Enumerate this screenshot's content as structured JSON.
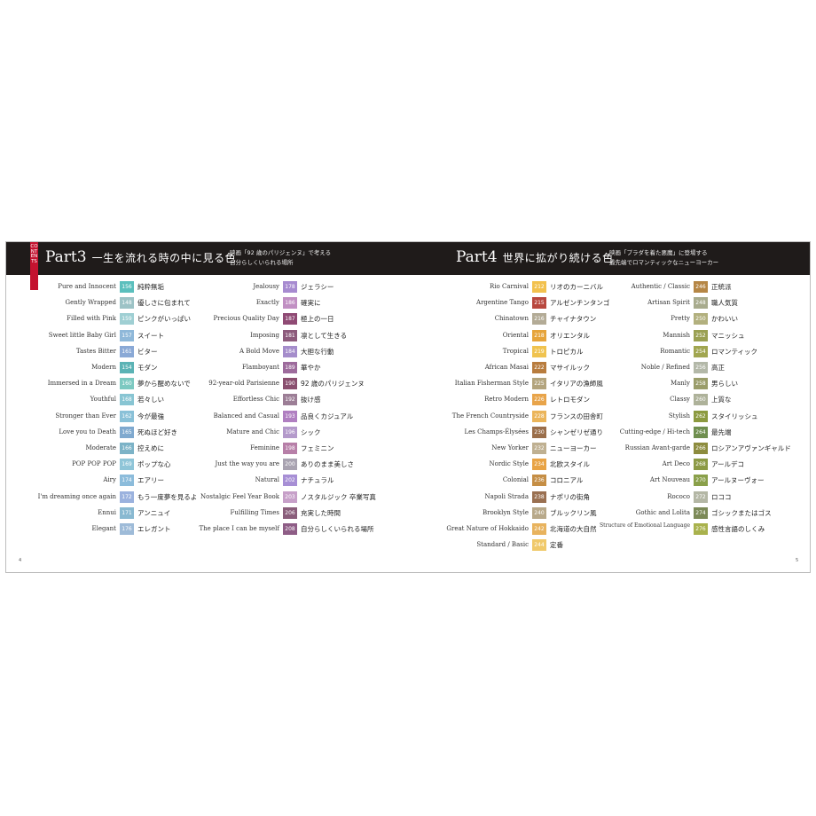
{
  "contents_label": "CONTENTS",
  "part3": {
    "title": "Part3",
    "subtitle": "一生を流れる時の中に見る色",
    "note_line1": "映画「92 歳のパリジェンヌ」で考える",
    "note_line2": "自分らしくいられる場所"
  },
  "part4": {
    "title": "Part4",
    "subtitle": "世界に拡がり続ける色",
    "note_line1": "映画「プラダを着た悪魔」に登場する",
    "note_line2": "最先端でロマンティックなニューヨーカー"
  },
  "page_numbers": {
    "left": "4",
    "right": "5"
  },
  "columns": [
    [
      {
        "en": "Pure and Innocent",
        "num": "156",
        "jp": "純粋無垢",
        "color": "#5bbfbd"
      },
      {
        "en": "Gently Wrapped",
        "num": "148",
        "jp": "優しさに包まれて",
        "color": "#9dc3c6"
      },
      {
        "en": "Filled with Pink",
        "num": "159",
        "jp": "ピンクがいっぱい",
        "color": "#9fcfd3"
      },
      {
        "en": "Sweet little Baby Girl",
        "num": "157",
        "jp": "スイート",
        "color": "#8fb8d9"
      },
      {
        "en": "Tastes Bitter",
        "num": "161",
        "jp": "ビター",
        "color": "#8aa9d6"
      },
      {
        "en": "Modern",
        "num": "154",
        "jp": "モダン",
        "color": "#5bb3b5"
      },
      {
        "en": "Immersed in a Dream",
        "num": "160",
        "jp": "夢から醒めないで",
        "color": "#7cc9c1"
      },
      {
        "en": "Youthful",
        "num": "168",
        "jp": "若々しい",
        "color": "#88c5d3"
      },
      {
        "en": "Stronger than Ever",
        "num": "162",
        "jp": "今が最強",
        "color": "#8ac1d8"
      },
      {
        "en": "Love you to Death",
        "num": "165",
        "jp": "死ぬほど好き",
        "color": "#7fa9cf"
      },
      {
        "en": "Moderate",
        "num": "166",
        "jp": "控えめに",
        "color": "#7cb3c7"
      },
      {
        "en": "POP POP POP",
        "num": "169",
        "jp": "ポップな心",
        "color": "#8fc5d8"
      },
      {
        "en": "Airy",
        "num": "174",
        "jp": "エアリー",
        "color": "#8cbcdb"
      },
      {
        "en": "I'm dreaming once again",
        "num": "172",
        "jp": "もう一度夢を見るよ",
        "color": "#9bb2de"
      },
      {
        "en": "Ennui",
        "num": "171",
        "jp": "アンニュイ",
        "color": "#89b9d1"
      },
      {
        "en": "Elegant",
        "num": "176",
        "jp": "エレガント",
        "color": "#9ebbd8"
      }
    ],
    [
      {
        "en": "Jealousy",
        "num": "178",
        "jp": "ジェラシー",
        "color": "#a78bd0"
      },
      {
        "en": "Exactly",
        "num": "186",
        "jp": "確実に",
        "color": "#c190c3"
      },
      {
        "en": "Precious Quality Day",
        "num": "187",
        "jp": "極上の一日",
        "color": "#8f4a74"
      },
      {
        "en": "Imposing",
        "num": "181",
        "jp": "凛として生きる",
        "color": "#8d5b7c"
      },
      {
        "en": "A Bold Move",
        "num": "184",
        "jp": "大胆な行動",
        "color": "#a58dcb"
      },
      {
        "en": "Flamboyant",
        "num": "189",
        "jp": "華やか",
        "color": "#9d6b9c"
      },
      {
        "en": "92-year-old Parisienne",
        "num": "190",
        "jp": "92 歳のパリジェンヌ",
        "color": "#8a4f6f"
      },
      {
        "en": "Effortless Chic",
        "num": "192",
        "jp": "抜け感",
        "color": "#9c7e96"
      },
      {
        "en": "Balanced and Casual",
        "num": "193",
        "jp": "品良くカジュアル",
        "color": "#b07fc1"
      },
      {
        "en": "Mature and Chic",
        "num": "196",
        "jp": "シック",
        "color": "#b49acb"
      },
      {
        "en": "Feminine",
        "num": "198",
        "jp": "フェミニン",
        "color": "#b77fa8"
      },
      {
        "en": "Just the way you are",
        "num": "200",
        "jp": "ありのまま美しさ",
        "color": "#a9a3b1"
      },
      {
        "en": "Natural",
        "num": "202",
        "jp": "ナチュラル",
        "color": "#a78fd5"
      },
      {
        "en": "Nostalgic Feel Year Book",
        "num": "203",
        "jp": "ノスタルジック 卒業写真",
        "color": "#c7a0c9"
      },
      {
        "en": "Fulfilling Times",
        "num": "206",
        "jp": "充実した時間",
        "color": "#8a5e7b"
      },
      {
        "en": "The place I can be myself",
        "num": "208",
        "jp": "自分らしくいられる場所",
        "color": "#8e5d86"
      }
    ],
    [
      {
        "en": "Rio Carnival",
        "num": "212",
        "jp": "リオのカーニバル",
        "color": "#f2c14e"
      },
      {
        "en": "Argentine Tango",
        "num": "215",
        "jp": "アルゼンチンタンゴ",
        "color": "#b8483f"
      },
      {
        "en": "Chinatown",
        "num": "216",
        "jp": "チャイナタウン",
        "color": "#b3ab96"
      },
      {
        "en": "Oriental",
        "num": "218",
        "jp": "オリエンタル",
        "color": "#e6a43b"
      },
      {
        "en": "Tropical",
        "num": "219",
        "jp": "トロピカル",
        "color": "#f0c34f"
      },
      {
        "en": "African Masai",
        "num": "222",
        "jp": "マサイルック",
        "color": "#b87c3e"
      },
      {
        "en": "Italian Fisherman Style",
        "num": "225",
        "jp": "イタリアの漁師風",
        "color": "#b3a47d"
      },
      {
        "en": "Retro Modern",
        "num": "226",
        "jp": "レトロモダン",
        "color": "#e8a44a"
      },
      {
        "en": "The French Countryside",
        "num": "228",
        "jp": "フランスの田舎町",
        "color": "#ebb55a"
      },
      {
        "en": "Les Champs-Élysées",
        "num": "230",
        "jp": "シャンゼリゼ通り",
        "color": "#9a6e4a"
      },
      {
        "en": "New Yorker",
        "num": "232",
        "jp": "ニューヨーカー",
        "color": "#bfb091"
      },
      {
        "en": "Nordic Style",
        "num": "234",
        "jp": "北欧スタイル",
        "color": "#e8a345"
      },
      {
        "en": "Colonial",
        "num": "236",
        "jp": "コロニアル",
        "color": "#c58e45"
      },
      {
        "en": "Napoli Strada",
        "num": "238",
        "jp": "ナポリの街角",
        "color": "#9a7051"
      },
      {
        "en": "Brooklyn Style",
        "num": "240",
        "jp": "ブルックリン風",
        "color": "#b8a98a"
      },
      {
        "en": "Great Nature of Hokkaido",
        "num": "242",
        "jp": "北海道の大自然",
        "color": "#e8b35e"
      },
      {
        "en": "Standard / Basic",
        "num": "244",
        "jp": "定番",
        "color": "#f0c96a"
      }
    ],
    [
      {
        "en": "Authentic / Classic",
        "num": "246",
        "jp": "正統派",
        "color": "#b58645",
        "two": false
      },
      {
        "en": "Artisan Spirit",
        "num": "248",
        "jp": "職人気質",
        "color": "#a8ab8d",
        "two": false
      },
      {
        "en": "Pretty",
        "num": "250",
        "jp": "かわいい",
        "color": "#b2b07e",
        "two": false
      },
      {
        "en": "Mannish",
        "num": "252",
        "jp": "マニッシュ",
        "color": "#9aa052",
        "two": false
      },
      {
        "en": "Romantic",
        "num": "254",
        "jp": "ロマンティック",
        "color": "#a1a650",
        "two": false
      },
      {
        "en": "Noble / Refined",
        "num": "256",
        "jp": "高正",
        "color": "#b3b8a8",
        "two": false
      },
      {
        "en": "Manly",
        "num": "258",
        "jp": "男らしい",
        "color": "#9a9d6a",
        "two": false
      },
      {
        "en": "Classy",
        "num": "260",
        "jp": "上質な",
        "color": "#aeb29a",
        "two": false
      },
      {
        "en": "Stylish",
        "num": "262",
        "jp": "スタイリッシュ",
        "color": "#8c9a3f",
        "two": false
      },
      {
        "en": "Cutting-edge / Hi-tech",
        "num": "264",
        "jp": "最先端",
        "color": "#6f8f4f",
        "two": false
      },
      {
        "en": "Russian Avant-garde",
        "num": "266",
        "jp": "ロシアンアヴァンギャルド",
        "color": "#8d8c3e",
        "two": false
      },
      {
        "en": "Art Deco",
        "num": "268",
        "jp": "アールデコ",
        "color": "#8c9a45",
        "two": false
      },
      {
        "en": "Art Nouveau",
        "num": "270",
        "jp": "アールヌーヴォー",
        "color": "#8aa04a",
        "two": false
      },
      {
        "en": "Rococo",
        "num": "272",
        "jp": "ロココ",
        "color": "#b4b7a5",
        "two": false
      },
      {
        "en": "Gothic and Lolita",
        "num": "274",
        "jp": "ゴシックまたはゴス",
        "color": "#7c8a58",
        "two": false
      },
      {
        "en": "Structure of Emotional Language",
        "num": "276",
        "jp": "感性言語のしくみ",
        "color": "#a9b24d",
        "two": true
      }
    ]
  ]
}
